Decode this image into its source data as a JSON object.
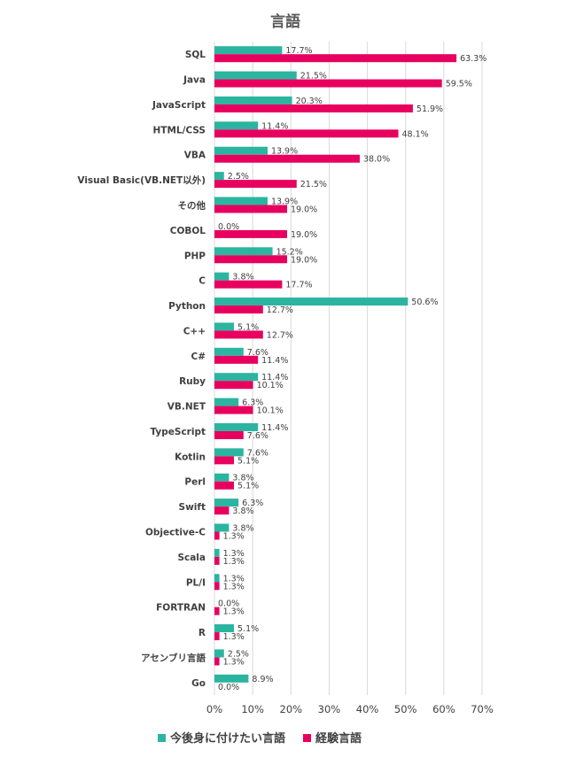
{
  "chart_data": {
    "type": "bar",
    "orientation": "horizontal",
    "title": "言語",
    "categories": [
      "SQL",
      "Java",
      "JavaScript",
      "HTML/CSS",
      "VBA",
      "Visual Basic(VB.NET以外)",
      "その他",
      "COBOL",
      "PHP",
      "C",
      "Python",
      "C++",
      "C#",
      "Ruby",
      "VB.NET",
      "TypeScript",
      "Kotlin",
      "Perl",
      "Swift",
      "Objective-C",
      "Scala",
      "PL/I",
      "FORTRAN",
      "R",
      "アセンブリ言語",
      "Go"
    ],
    "series": [
      {
        "name": "今後身に付けたい言語",
        "color": "#2bb5a0",
        "values": [
          17.7,
          21.5,
          20.3,
          11.4,
          13.9,
          2.5,
          13.9,
          0.0,
          15.2,
          3.8,
          50.6,
          5.1,
          7.6,
          11.4,
          6.3,
          11.4,
          7.6,
          3.8,
          6.3,
          3.8,
          1.3,
          1.3,
          0.0,
          5.1,
          2.5,
          8.9
        ],
        "labels": [
          "17.7%",
          "21.5%",
          "20.3%",
          "11.4%",
          "13.9%",
          "2.5%",
          "13.9%",
          "0.0%",
          "15.2%",
          "3.8%",
          "50.6%",
          "5.1%",
          "7.6%",
          "11.4%",
          "6.3%",
          "11.4%",
          "7.6%",
          "3.8%",
          "6.3%",
          "3.8%",
          "1.3%",
          "1.3%",
          "0.0%",
          "5.1%",
          "2.5%",
          "8.9%"
        ]
      },
      {
        "name": "経験言語",
        "color": "#e8005f",
        "values": [
          63.3,
          59.5,
          51.9,
          48.1,
          38.0,
          21.5,
          19.0,
          19.0,
          19.0,
          17.7,
          12.7,
          12.7,
          11.4,
          10.1,
          10.1,
          7.6,
          5.1,
          5.1,
          3.8,
          1.3,
          1.3,
          1.3,
          1.3,
          1.3,
          1.3,
          0.0
        ],
        "labels": [
          "63.3%",
          "59.5%",
          "51.9%",
          "48.1%",
          "38.0%",
          "21.5%",
          "19.0%",
          "19.0%",
          "19.0%",
          "17.7%",
          "12.7%",
          "12.7%",
          "11.4%",
          "10.1%",
          "10.1%",
          "7.6%",
          "5.1%",
          "5.1%",
          "3.8%",
          "1.3%",
          "1.3%",
          "1.3%",
          "1.3%",
          "1.3%",
          "1.3%",
          "0.0%"
        ]
      }
    ],
    "xlim": [
      0,
      70
    ],
    "xticks": [
      "0%",
      "10%",
      "20%",
      "30%",
      "40%",
      "50%",
      "60%",
      "70%"
    ],
    "xtick_values": [
      0,
      10,
      20,
      30,
      40,
      50,
      60,
      70
    ],
    "grid": true,
    "legend_position": "bottom"
  }
}
